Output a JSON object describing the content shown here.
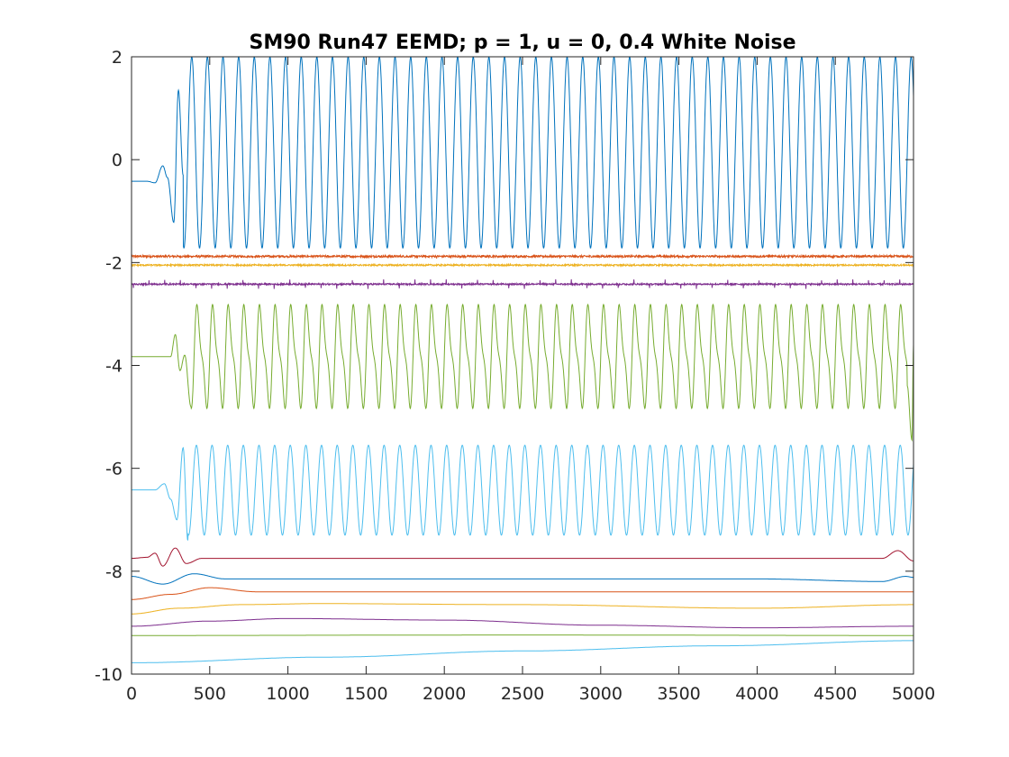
{
  "chart_data": {
    "type": "line",
    "title": "SM90 Run47 EEMD; p = 1, u = 0, 0.4 White Noise",
    "xlabel": "",
    "ylabel": "",
    "xlim": [
      0,
      5000
    ],
    "ylim": [
      -10,
      2
    ],
    "x_ticks": [
      0,
      500,
      1000,
      1500,
      2000,
      2500,
      3000,
      3500,
      4000,
      4500,
      5000
    ],
    "y_ticks": [
      2,
      0,
      -2,
      -4,
      -6,
      -8,
      -10
    ],
    "grid": false,
    "series": [
      {
        "color": "#0072BD",
        "kind": "oscillation",
        "baseline": -0.42,
        "onset": 260,
        "period": 100,
        "lo": -1.72,
        "hi": 2.0,
        "pre": [
          [
            0,
            -0.42
          ],
          [
            100,
            -0.42
          ],
          [
            150,
            -0.45
          ],
          [
            200,
            -0.12
          ],
          [
            230,
            -0.35
          ],
          [
            270,
            -1.22
          ],
          [
            300,
            1.35
          ],
          [
            330,
            -0.3
          ]
        ]
      },
      {
        "color": "#D95319",
        "kind": "noise",
        "baseline": -1.88,
        "amp": 0.02
      },
      {
        "color": "#EDB120",
        "kind": "noise",
        "baseline": -2.05,
        "amp": 0.015
      },
      {
        "color": "#7E2F8E",
        "kind": "spiky",
        "baseline": -2.42,
        "amp": 0.08
      },
      {
        "color": "#77AC30",
        "kind": "oscillation",
        "baseline": -3.83,
        "onset": 300,
        "period": 100,
        "lo": -4.9,
        "hi": -2.75,
        "pre": [
          [
            0,
            -3.83
          ],
          [
            250,
            -3.83
          ],
          [
            280,
            -3.4
          ],
          [
            310,
            -4.1
          ],
          [
            340,
            -3.8
          ],
          [
            380,
            -4.8
          ]
        ],
        "end": [
          [
            4960,
            -4.4
          ],
          [
            4990,
            -5.45
          ],
          [
            5000,
            -3.6
          ]
        ]
      },
      {
        "color": "#4DBEEE",
        "kind": "oscillation",
        "baseline": -6.42,
        "onset": 290,
        "period": 100,
        "lo": -7.3,
        "hi": -5.55,
        "pre": [
          [
            0,
            -6.42
          ],
          [
            150,
            -6.42
          ],
          [
            210,
            -6.3
          ],
          [
            250,
            -6.6
          ],
          [
            290,
            -7.0
          ],
          [
            330,
            -5.6
          ],
          [
            360,
            -7.4
          ]
        ]
      },
      {
        "color": "#A2142F",
        "kind": "wave",
        "points": [
          [
            0,
            -7.75
          ],
          [
            100,
            -7.73
          ],
          [
            150,
            -7.65
          ],
          [
            200,
            -7.9
          ],
          [
            280,
            -7.55
          ],
          [
            350,
            -7.85
          ],
          [
            450,
            -7.75
          ],
          [
            4800,
            -7.75
          ],
          [
            4900,
            -7.6
          ],
          [
            5000,
            -7.8
          ]
        ]
      },
      {
        "color": "#0072BD",
        "kind": "wave",
        "points": [
          [
            0,
            -8.1
          ],
          [
            200,
            -8.25
          ],
          [
            400,
            -8.05
          ],
          [
            600,
            -8.15
          ],
          [
            2000,
            -8.15
          ],
          [
            4000,
            -8.15
          ],
          [
            4800,
            -8.2
          ],
          [
            4950,
            -8.1
          ],
          [
            5000,
            -8.12
          ]
        ]
      },
      {
        "color": "#D95319",
        "kind": "wave",
        "points": [
          [
            0,
            -8.55
          ],
          [
            250,
            -8.45
          ],
          [
            500,
            -8.32
          ],
          [
            800,
            -8.4
          ],
          [
            2000,
            -8.4
          ],
          [
            4000,
            -8.4
          ],
          [
            5000,
            -8.4
          ]
        ]
      },
      {
        "color": "#EDB120",
        "kind": "wave",
        "points": [
          [
            0,
            -8.83
          ],
          [
            300,
            -8.72
          ],
          [
            700,
            -8.65
          ],
          [
            1200,
            -8.63
          ],
          [
            2500,
            -8.65
          ],
          [
            4000,
            -8.72
          ],
          [
            5000,
            -8.65
          ]
        ]
      },
      {
        "color": "#7E2F8E",
        "kind": "wave",
        "points": [
          [
            0,
            -9.07
          ],
          [
            500,
            -8.97
          ],
          [
            1000,
            -8.92
          ],
          [
            2000,
            -8.95
          ],
          [
            3000,
            -9.05
          ],
          [
            4000,
            -9.1
          ],
          [
            5000,
            -9.07
          ]
        ]
      },
      {
        "color": "#77AC30",
        "kind": "wave",
        "points": [
          [
            0,
            -9.25
          ],
          [
            2500,
            -9.24
          ],
          [
            5000,
            -9.25
          ]
        ]
      },
      {
        "color": "#4DBEEE",
        "kind": "wave",
        "points": [
          [
            0,
            -9.78
          ],
          [
            1250,
            -9.67
          ],
          [
            2500,
            -9.55
          ],
          [
            3750,
            -9.45
          ],
          [
            5000,
            -9.35
          ]
        ]
      }
    ]
  }
}
